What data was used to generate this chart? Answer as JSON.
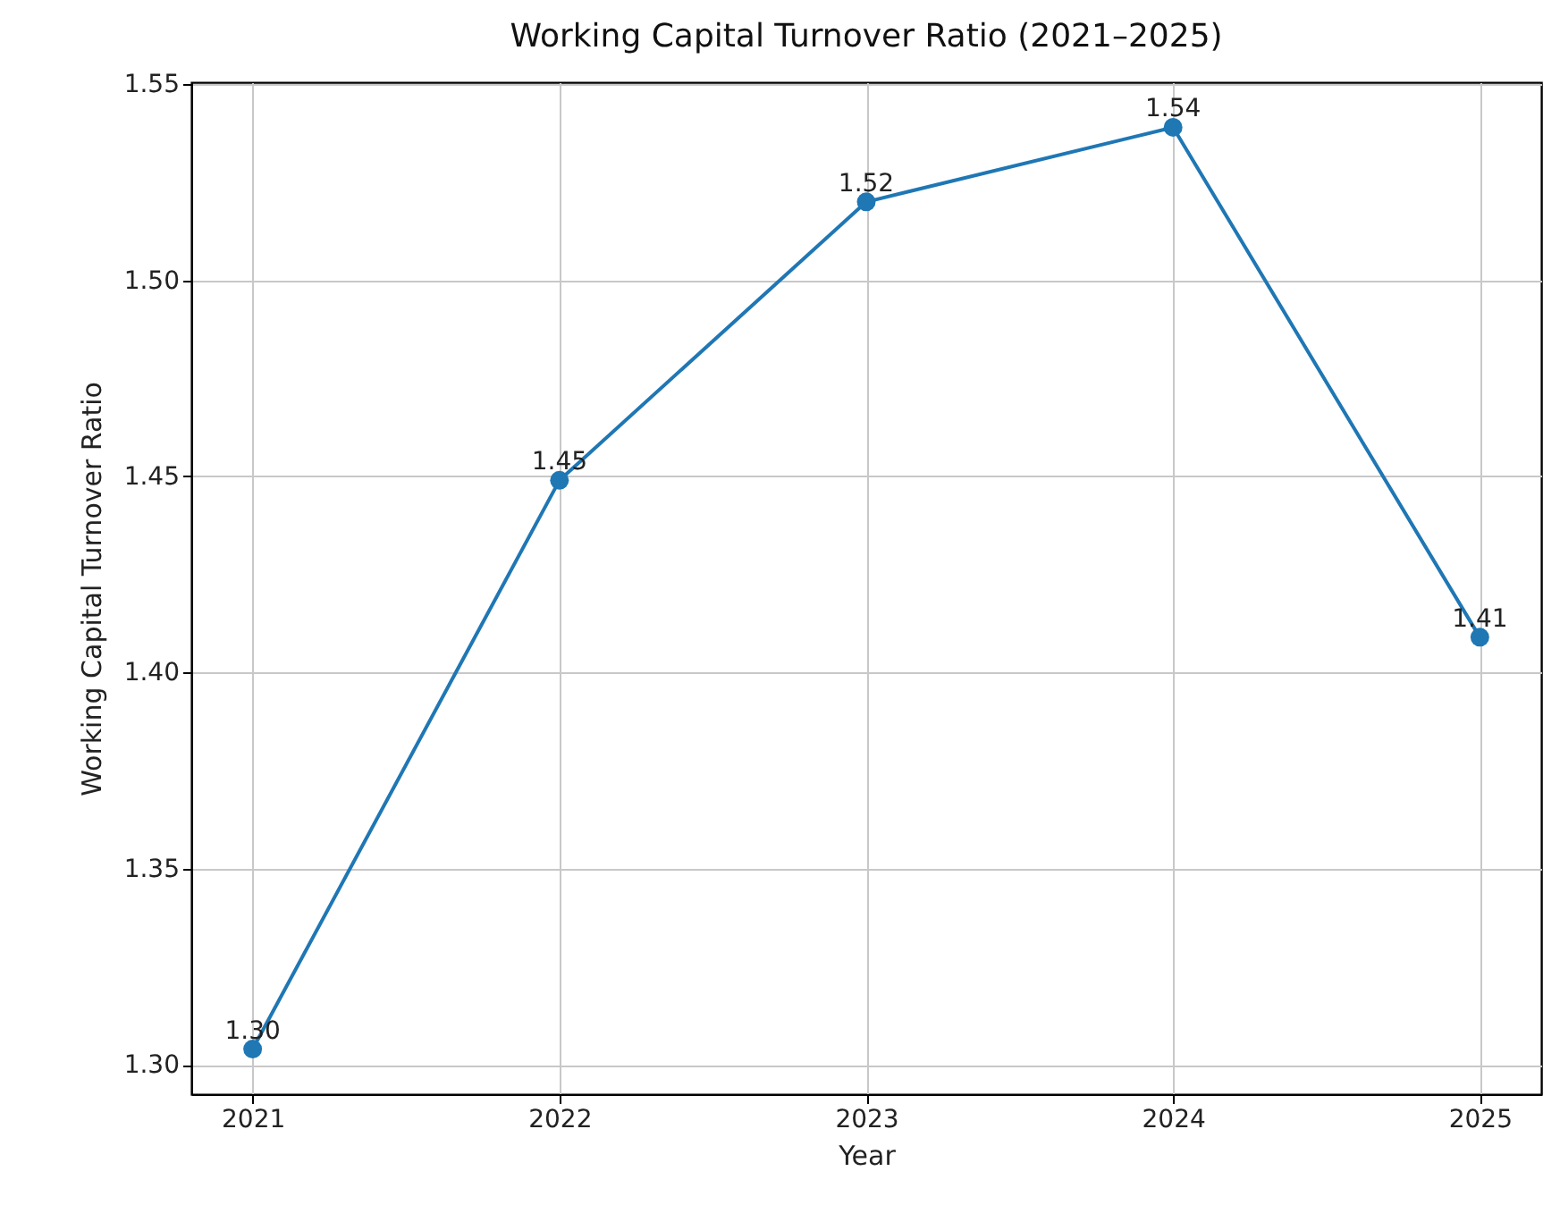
{
  "chart_data": {
    "type": "line",
    "title": "Working Capital Turnover Ratio (2021–2025)",
    "xlabel": "Year",
    "ylabel": "Working Capital Turnover Ratio",
    "x": [
      2021,
      2022,
      2023,
      2024,
      2025
    ],
    "series": [
      {
        "color": "#1f77b4",
        "values": [
          1.304,
          1.449,
          1.52,
          1.539,
          1.409
        ],
        "value_labels": [
          "1.30",
          "1.45",
          "1.52",
          "1.54",
          "1.41"
        ]
      }
    ],
    "xlim": [
      2020.8,
      2025.2
    ],
    "xticks": [
      2021,
      2022,
      2023,
      2024,
      2025
    ],
    "ylim": [
      1.2925,
      1.5505
    ],
    "yticks": [
      {
        "value": 1.3,
        "label": "1.30"
      },
      1.35,
      {
        "value": 1.4,
        "label": "1.40"
      },
      1.45,
      {
        "value": 1.5,
        "label": "1.50"
      },
      1.55
    ],
    "grid": true,
    "marker": "circle",
    "line_style": "solid"
  }
}
